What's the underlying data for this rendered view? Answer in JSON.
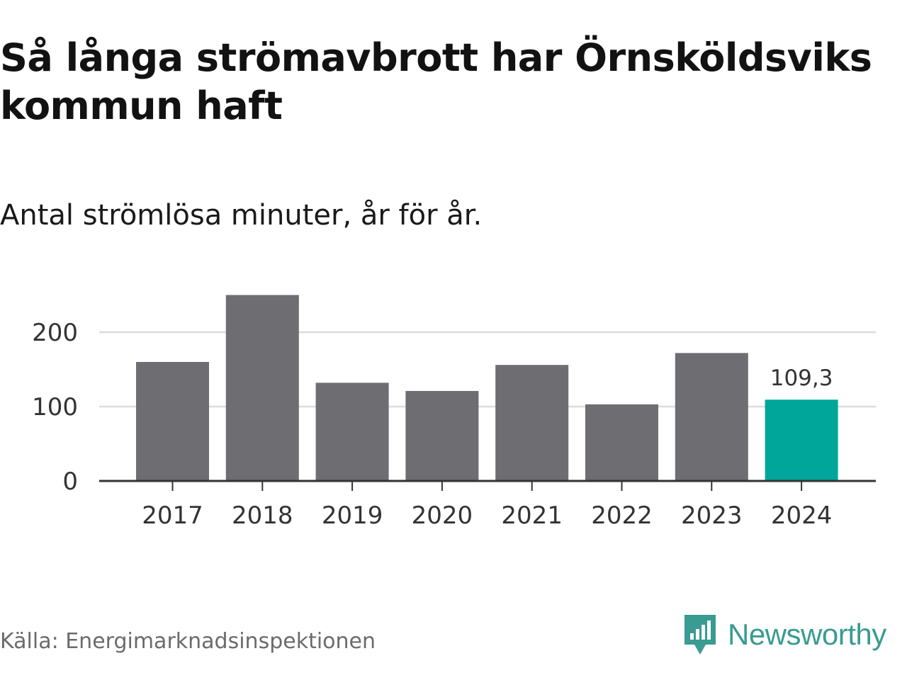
{
  "header": {
    "title": "Så långa strömavbrott har Örnsköldsviks kommun haft",
    "subtitle": "Antal strömlösa minuter, år för år."
  },
  "footer": {
    "source": "Källa: Energimarknadsinspektionen",
    "brand": "Newsworthy",
    "brand_icon": "newsworthy-logo-icon"
  },
  "colors": {
    "bar": "#6e6d72",
    "highlight": "#00a69a",
    "grid": "#dcdcdc",
    "axis": "#333333",
    "brand": "#3a9b92"
  },
  "chart_data": {
    "type": "bar",
    "title": "Så långa strömavbrott har Örnsköldsviks kommun haft",
    "subtitle": "Antal strömlösa minuter, år för år.",
    "xlabel": "",
    "ylabel": "",
    "categories": [
      "2017",
      "2018",
      "2019",
      "2020",
      "2021",
      "2022",
      "2023",
      "2024"
    ],
    "values": [
      160,
      250,
      132,
      121,
      156,
      103,
      172,
      109.3
    ],
    "highlight_index": 7,
    "data_labels": [
      {
        "index": 7,
        "text": "109,3"
      }
    ],
    "yticks": [
      0,
      100,
      200
    ],
    "ytick_labels": [
      "0",
      "100",
      "200"
    ],
    "ylim": [
      0,
      260
    ],
    "grid": true,
    "legend": "none"
  }
}
